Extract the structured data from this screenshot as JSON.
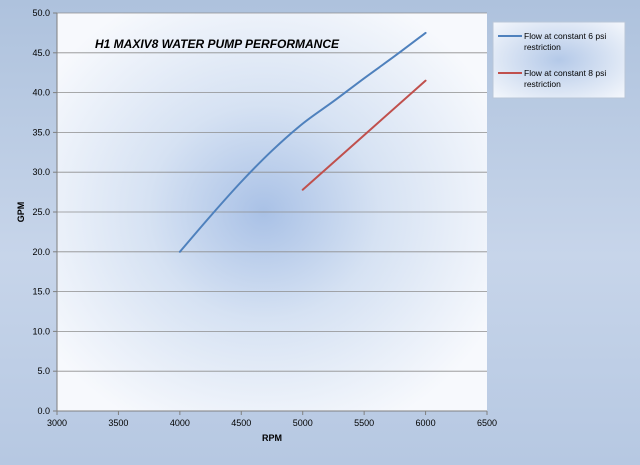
{
  "chart_data": {
    "type": "line",
    "title": "H1 MAXIV8 WATER PUMP PERFORMANCE",
    "xlabel": "RPM",
    "ylabel": "GPM",
    "xlim": [
      3000,
      6500
    ],
    "ylim": [
      0,
      50
    ],
    "xticks": [
      3000,
      3500,
      4000,
      4500,
      5000,
      5500,
      6000,
      6500
    ],
    "yticks": [
      0,
      5,
      10,
      15,
      20,
      25,
      30,
      35,
      40,
      45,
      50
    ],
    "ytick_format": "1 decimal",
    "grid": "horizontal",
    "legend_position": "right",
    "series": [
      {
        "name": "Flow at constant 6 psi restriction",
        "color": "#4f81bd",
        "x": [
          4000,
          4250,
          4500,
          4750,
          5000,
          5250,
          5500,
          5750,
          6000
        ],
        "y": [
          20.0,
          24.5,
          28.8,
          32.7,
          36.1,
          38.9,
          41.8,
          44.6,
          47.5
        ]
      },
      {
        "name": "Flow at constant 8 psi restriction",
        "color": "#c0504d",
        "x": [
          5000,
          6000
        ],
        "y": [
          27.8,
          41.5
        ]
      }
    ]
  }
}
